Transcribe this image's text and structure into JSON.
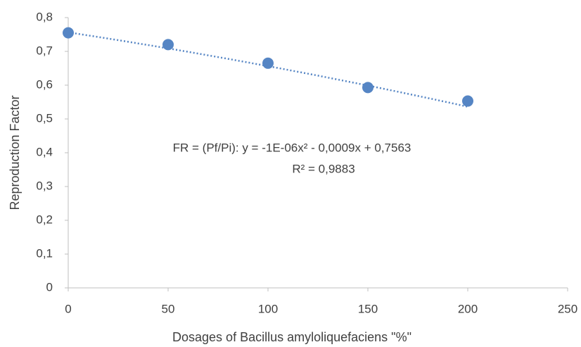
{
  "chart_data": {
    "type": "scatter",
    "x_label": "Dosages  of Bacillus amyloliquefaciens \"%\"",
    "y_label": "Reproduction Factor",
    "series": [
      {
        "name": "FR = (Pf/Pi)",
        "color": "#5585c4",
        "x": [
          0,
          50,
          100,
          150,
          200
        ],
        "values": [
          0.755,
          0.72,
          0.665,
          0.593,
          0.553
        ]
      }
    ],
    "trendline": {
      "type": "polynomial",
      "color": "#5585c4",
      "equation": "FR = (Pf/Pi): y = -1E-06x² - 0,0009x + 0,7563",
      "r2": "R² = 0,9883",
      "coefficients": [
        -1e-06,
        -0.0009,
        0.7563
      ]
    },
    "xlim": [
      0,
      250
    ],
    "xticks": [
      0,
      50,
      100,
      150,
      200,
      250
    ],
    "ylim": [
      0,
      0.8
    ],
    "yticks": [
      0,
      {
        "value": 0.1,
        "label": "0,1"
      },
      {
        "value": 0.2,
        "label": "0,2"
      },
      {
        "value": 0.3,
        "label": "0,3"
      },
      {
        "value": 0.4,
        "label": "0,4"
      },
      {
        "value": 0.5,
        "label": "0,5"
      },
      {
        "value": 0.6,
        "label": "0,6"
      },
      {
        "value": 0.7,
        "label": "0,7"
      },
      {
        "value": 0.8,
        "label": "0,8"
      }
    ],
    "grid": false
  }
}
